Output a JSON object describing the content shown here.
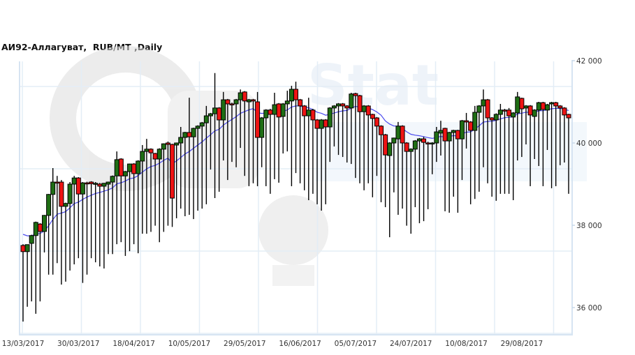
{
  "chart_data": {
    "type": "candlestick",
    "title": "АИ92-Аллагуват,  RUB/MT ,Daily",
    "xlabel": "",
    "ylabel": "",
    "ylim": [
      35400,
      42000
    ],
    "y_ticks": [
      "42 000",
      "40 000",
      "38 000",
      "36 000"
    ],
    "y_tick_values": [
      42000,
      40000,
      38000,
      36000
    ],
    "x_tick_labels": [
      "13/03/2017",
      "30/03/2017",
      "18/04/2017",
      "10/05/2017",
      "29/05/2017",
      "16/06/2017",
      "05/07/2017",
      "24/07/2017",
      "10/08/2017",
      "29/08/2017"
    ],
    "x_tick_candle_index": [
      0,
      13,
      26,
      39,
      52,
      65,
      78,
      91,
      104,
      117
    ],
    "grid": true,
    "colors": {
      "up": "#1f6e14",
      "down": "#ee1414",
      "moving_average": "#4a4aee",
      "grid": "#e3edf6"
    },
    "moving_average_shown": true,
    "ohlc": [
      [
        37510,
        37540,
        35660,
        37360
      ],
      [
        37360,
        37530,
        36020,
        37530
      ],
      [
        37560,
        37770,
        36150,
        37750
      ],
      [
        37750,
        38090,
        35850,
        38070
      ],
      [
        38030,
        38050,
        36150,
        37850
      ],
      [
        37850,
        38250,
        37340,
        38240
      ],
      [
        38240,
        38760,
        36800,
        38750
      ],
      [
        38750,
        39390,
        36800,
        39050
      ],
      [
        39050,
        39200,
        37080,
        39040
      ],
      [
        39050,
        39100,
        36560,
        38460
      ],
      [
        38460,
        38550,
        36630,
        38530
      ],
      [
        38530,
        39050,
        36900,
        39000
      ],
      [
        39000,
        39200,
        37050,
        39150
      ],
      [
        39150,
        39170,
        37200,
        38760
      ],
      [
        38760,
        39050,
        36600,
        39030
      ],
      [
        39030,
        39060,
        36800,
        39020
      ],
      [
        39050,
        39070,
        37200,
        39010
      ],
      [
        39010,
        39050,
        37100,
        39020
      ],
      [
        39000,
        39030,
        37000,
        38950
      ],
      [
        38950,
        39030,
        36950,
        39020
      ],
      [
        39000,
        39060,
        37300,
        39050
      ],
      [
        39050,
        39210,
        37300,
        39190
      ],
      [
        39200,
        39795,
        37540,
        39595
      ],
      [
        39610,
        39630,
        37590,
        39200
      ],
      [
        39200,
        39320,
        37255,
        39305
      ],
      [
        39305,
        39500,
        37370,
        39490
      ],
      [
        39490,
        39510,
        37540,
        39255
      ],
      [
        39255,
        39580,
        37320,
        39560
      ],
      [
        39560,
        39950,
        37795,
        39795
      ],
      [
        39795,
        40100,
        37795,
        39850
      ],
      [
        39850,
        39870,
        37840,
        39760
      ],
      [
        39745,
        39760,
        37990,
        39610
      ],
      [
        39610,
        39870,
        37590,
        39850
      ],
      [
        39850,
        39990,
        37840,
        39980
      ],
      [
        40000,
        40035,
        37990,
        39965
      ],
      [
        39965,
        39980,
        37960,
        38660
      ],
      [
        39950,
        40010,
        38170,
        40000
      ],
      [
        40000,
        40390,
        38405,
        40135
      ],
      [
        40135,
        40270,
        38220,
        40255
      ],
      [
        40255,
        41100,
        38255,
        40150
      ],
      [
        40150,
        40370,
        38150,
        40355
      ],
      [
        40355,
        40430,
        38355,
        40410
      ],
      [
        40410,
        40510,
        38405,
        40490
      ],
      [
        40490,
        40900,
        38510,
        40660
      ],
      [
        40660,
        40730,
        39355,
        40710
      ],
      [
        40710,
        41700,
        38660,
        40850
      ],
      [
        40850,
        40870,
        38815,
        40560
      ],
      [
        40560,
        41240,
        39575,
        41050
      ],
      [
        41050,
        41070,
        39100,
        40950
      ],
      [
        40950,
        40980,
        39540,
        40940
      ],
      [
        40950,
        41070,
        39410,
        41050
      ],
      [
        41050,
        41300,
        39880,
        41220
      ],
      [
        41240,
        41260,
        39200,
        41020
      ],
      [
        41000,
        41070,
        38950,
        41050
      ],
      [
        41050,
        41070,
        39020,
        41020
      ],
      [
        41000,
        41240,
        38950,
        40135
      ],
      [
        40135,
        40630,
        39410,
        40610
      ],
      [
        40610,
        40820,
        38950,
        40800
      ],
      [
        40800,
        40830,
        38765,
        40695
      ],
      [
        40695,
        41220,
        39120,
        40930
      ],
      [
        40950,
        40970,
        39035,
        40630
      ],
      [
        40645,
        40970,
        39745,
        40950
      ],
      [
        40950,
        41270,
        39795,
        41020
      ],
      [
        41020,
        41390,
        38950,
        41305
      ],
      [
        41305,
        41490,
        39270,
        41050
      ],
      [
        41050,
        41070,
        39020,
        40900
      ],
      [
        40900,
        40920,
        38850,
        40660
      ],
      [
        40660,
        41100,
        38610,
        40800
      ],
      [
        40800,
        40830,
        38765,
        40560
      ],
      [
        40560,
        40580,
        38510,
        40355
      ],
      [
        40355,
        40580,
        38355,
        40560
      ],
      [
        40560,
        40580,
        38510,
        40390
      ],
      [
        40390,
        40870,
        39540,
        40850
      ],
      [
        40850,
        40920,
        39915,
        40900
      ],
      [
        40900,
        40970,
        39710,
        40950
      ],
      [
        40950,
        40970,
        39660,
        40900
      ],
      [
        40900,
        40920,
        39525,
        40850
      ],
      [
        40850,
        41220,
        39490,
        41190
      ],
      [
        41200,
        41220,
        39150,
        41150
      ],
      [
        41150,
        41170,
        39020,
        40760
      ],
      [
        40760,
        40920,
        38850,
        40900
      ],
      [
        40900,
        40920,
        39020,
        40680
      ],
      [
        40695,
        40710,
        38680,
        40595
      ],
      [
        40610,
        40630,
        39200,
        40410
      ],
      [
        40410,
        40430,
        38560,
        40200
      ],
      [
        40200,
        40220,
        38440,
        39710
      ],
      [
        39695,
        40020,
        37710,
        40000
      ],
      [
        40000,
        40130,
        38800,
        40120
      ],
      [
        40100,
        40510,
        38255,
        40410
      ],
      [
        40410,
        40430,
        38405,
        40000
      ],
      [
        40000,
        40020,
        37990,
        39795
      ],
      [
        39795,
        39870,
        37795,
        39850
      ],
      [
        39850,
        40070,
        38440,
        40050
      ],
      [
        40050,
        40120,
        38050,
        40100
      ],
      [
        40100,
        40150,
        38100,
        40015
      ],
      [
        40000,
        40030,
        38390,
        39990
      ],
      [
        39990,
        40020,
        39240,
        40000
      ],
      [
        40000,
        40390,
        39540,
        40270
      ],
      [
        40240,
        40540,
        39695,
        40305
      ],
      [
        40355,
        40370,
        38340,
        40050
      ],
      [
        40050,
        40270,
        38305,
        40255
      ],
      [
        40255,
        40320,
        38695,
        40305
      ],
      [
        40305,
        40320,
        38305,
        40100
      ],
      [
        40100,
        40560,
        39100,
        40540
      ],
      [
        40540,
        40730,
        39865,
        40510
      ],
      [
        40510,
        40530,
        38510,
        40305
      ],
      [
        40305,
        40900,
        38640,
        40745
      ],
      [
        40745,
        40920,
        38815,
        40900
      ],
      [
        40900,
        41300,
        39410,
        41050
      ],
      [
        41050,
        41070,
        39020,
        40610
      ],
      [
        40610,
        40630,
        38695,
        40560
      ],
      [
        40560,
        40720,
        38595,
        40695
      ],
      [
        40695,
        40950,
        38765,
        40800
      ],
      [
        40800,
        40830,
        38765,
        40790
      ],
      [
        40800,
        40850,
        38765,
        40660
      ],
      [
        40630,
        40750,
        38610,
        40730
      ],
      [
        40730,
        41240,
        39575,
        41120
      ],
      [
        41085,
        41100,
        39660,
        40830
      ],
      [
        40850,
        40920,
        39965,
        40900
      ],
      [
        40900,
        40920,
        38950,
        40680
      ],
      [
        40645,
        40820,
        39610,
        40800
      ],
      [
        40800,
        41000,
        39440,
        40980
      ],
      [
        40980,
        41000,
        38950,
        40815
      ],
      [
        40800,
        40950,
        39830,
        40930
      ],
      [
        40950,
        41000,
        38900,
        40980
      ],
      [
        40980,
        41000,
        38950,
        40900
      ],
      [
        40900,
        40920,
        39460,
        40850
      ],
      [
        40850,
        40870,
        39525,
        40680
      ],
      [
        40695,
        40710,
        38765,
        40610
      ]
    ]
  }
}
